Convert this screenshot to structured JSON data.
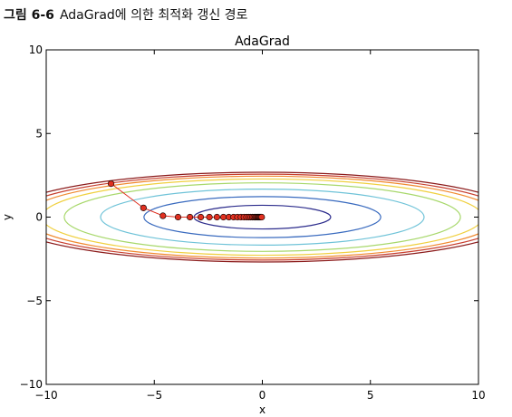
{
  "figure_caption": {
    "number": "그림 6-6",
    "text": "AdaGrad에 의한 최적화 갱신 경로"
  },
  "chart_data": {
    "type": "contour+line",
    "title": "AdaGrad",
    "xlabel": "x",
    "ylabel": "y",
    "xlim": [
      -10,
      10
    ],
    "ylim": [
      -10,
      10
    ],
    "xticks": [
      -10,
      -5,
      0,
      5,
      10
    ],
    "yticks": [
      -10,
      -5,
      0,
      5,
      10
    ],
    "xtick_labels": [
      "−10",
      "−5",
      "0",
      "5",
      "10"
    ],
    "ytick_labels": [
      "−10",
      "−5",
      "0",
      "5",
      "10"
    ],
    "grid": false,
    "function": "f(x, y) = x^2 / 20 + y^2",
    "contour_levels": [
      {
        "level": 0.5,
        "color": "#2c2c8c"
      },
      {
        "level": 1.5,
        "color": "#3a6bbf"
      },
      {
        "level": 2.8,
        "color": "#6fc3d8"
      },
      {
        "level": 4.2,
        "color": "#a8d86c"
      },
      {
        "level": 5.2,
        "color": "#f0d040"
      },
      {
        "level": 6.0,
        "color": "#f08a30"
      },
      {
        "level": 6.6,
        "color": "#c84030"
      },
      {
        "level": 7.2,
        "color": "#8c1c1c"
      }
    ],
    "path": {
      "line_color": "#e03020",
      "marker_color": "#e03020",
      "points": [
        [
          -7.0,
          2.0
        ],
        [
          -5.5,
          0.55
        ],
        [
          -4.6,
          0.08
        ],
        [
          -3.9,
          0.0
        ],
        [
          -3.35,
          0.0
        ],
        [
          -2.85,
          0.0
        ],
        [
          -2.45,
          0.0
        ],
        [
          -2.1,
          0.0
        ],
        [
          -1.8,
          0.0
        ],
        [
          -1.55,
          0.0
        ],
        [
          -1.33,
          0.0
        ],
        [
          -1.15,
          0.0
        ],
        [
          -0.99,
          0.0
        ],
        [
          -0.85,
          0.0
        ],
        [
          -0.73,
          0.0
        ],
        [
          -0.63,
          0.0
        ],
        [
          -0.54,
          0.0
        ],
        [
          -0.46,
          0.0
        ],
        [
          -0.39,
          0.0
        ],
        [
          -0.33,
          0.0
        ],
        [
          -0.28,
          0.0
        ],
        [
          -0.23,
          0.0
        ],
        [
          -0.19,
          0.0
        ],
        [
          -0.15,
          0.0
        ],
        [
          -0.11,
          0.0
        ],
        [
          -0.07,
          0.0
        ],
        [
          -0.03,
          0.0
        ]
      ]
    }
  }
}
